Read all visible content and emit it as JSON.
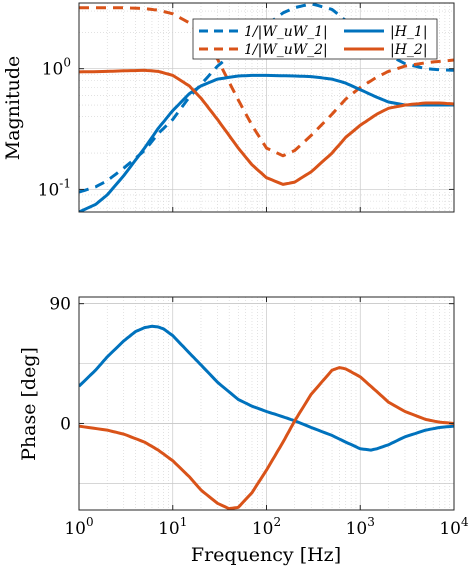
{
  "chart_data": [
    {
      "type": "line",
      "xlabel": "",
      "ylabel": "Magnitude",
      "xscale": "log",
      "yscale": "log",
      "xlim": [
        1,
        10000
      ],
      "ylim": [
        0.065,
        3.5
      ],
      "grid": true,
      "legend": "top-right",
      "x_ticks": [
        1,
        10,
        100,
        1000,
        10000
      ],
      "y_ticks": [
        {
          "value": 0.1,
          "label": "10^{-1}"
        },
        {
          "value": 1,
          "label": "10^{0}"
        }
      ],
      "series": [
        {
          "name": "1/|W_uW_1|",
          "color": "#0072BD",
          "dash": "dashed",
          "x": [
            1,
            1.5,
            2,
            3,
            5,
            7,
            10,
            15,
            20,
            30,
            50,
            70,
            100,
            150,
            200,
            300,
            500,
            700,
            1000,
            1500,
            2000,
            3000,
            5000,
            7000,
            10000
          ],
          "y": [
            0.095,
            0.105,
            0.118,
            0.15,
            0.21,
            0.29,
            0.38,
            0.58,
            0.74,
            1.05,
            1.45,
            1.85,
            2.3,
            2.9,
            3.2,
            3.45,
            3.1,
            2.5,
            2.0,
            1.55,
            1.3,
            1.1,
            1.0,
            0.98,
            0.97
          ]
        },
        {
          "name": "1/|W_uW_2|",
          "color": "#D95319",
          "dash": "dashed",
          "x": [
            1,
            2,
            3,
            5,
            7,
            10,
            15,
            20,
            30,
            50,
            70,
            100,
            150,
            200,
            300,
            500,
            700,
            1000,
            1500,
            2000,
            3000,
            5000,
            7000,
            10000
          ],
          "y": [
            3.2,
            3.2,
            3.2,
            3.15,
            3.05,
            2.85,
            2.4,
            1.9,
            1.2,
            0.55,
            0.34,
            0.22,
            0.19,
            0.21,
            0.28,
            0.42,
            0.56,
            0.7,
            0.85,
            0.95,
            1.05,
            1.12,
            1.15,
            1.18
          ]
        },
        {
          "name": "|H_1|",
          "color": "#0072BD",
          "dash": "solid",
          "x": [
            1,
            1.5,
            2,
            3,
            5,
            7,
            10,
            15,
            20,
            30,
            50,
            70,
            100,
            200,
            300,
            500,
            700,
            1000,
            1500,
            2000,
            3000,
            5000,
            7000,
            10000
          ],
          "y": [
            0.065,
            0.075,
            0.09,
            0.13,
            0.22,
            0.32,
            0.45,
            0.62,
            0.72,
            0.82,
            0.87,
            0.88,
            0.88,
            0.87,
            0.86,
            0.82,
            0.76,
            0.67,
            0.58,
            0.53,
            0.5,
            0.5,
            0.5,
            0.5
          ]
        },
        {
          "name": "|H_2|",
          "color": "#D95319",
          "dash": "solid",
          "x": [
            1,
            2,
            3,
            5,
            7,
            10,
            15,
            20,
            30,
            50,
            70,
            100,
            150,
            200,
            300,
            500,
            700,
            1000,
            1500,
            2000,
            3000,
            5000,
            7000,
            10000
          ],
          "y": [
            0.94,
            0.95,
            0.96,
            0.97,
            0.95,
            0.88,
            0.72,
            0.57,
            0.38,
            0.22,
            0.16,
            0.125,
            0.11,
            0.115,
            0.14,
            0.2,
            0.27,
            0.34,
            0.42,
            0.47,
            0.5,
            0.52,
            0.52,
            0.51
          ]
        }
      ]
    },
    {
      "type": "line",
      "xlabel": "Frequency [Hz]",
      "ylabel": "Phase [deg]",
      "xscale": "log",
      "yscale": "linear",
      "xlim": [
        1,
        10000
      ],
      "ylim": [
        -65,
        95
      ],
      "grid": true,
      "x_ticks": [
        {
          "value": 1,
          "label": "10^{0}"
        },
        {
          "value": 10,
          "label": "10^{1}"
        },
        {
          "value": 100,
          "label": "10^{2}"
        },
        {
          "value": 1000,
          "label": "10^{3}"
        },
        {
          "value": 10000,
          "label": "10^{4}"
        }
      ],
      "y_ticks": [
        0,
        90
      ],
      "series": [
        {
          "color": "#0072BD",
          "x": [
            1,
            1.5,
            2,
            3,
            4,
            5,
            6,
            7,
            8,
            10,
            15,
            20,
            30,
            50,
            70,
            100,
            150,
            200,
            300,
            500,
            700,
            1000,
            1300,
            1500,
            2000,
            3000,
            5000,
            7000,
            10000
          ],
          "y": [
            28,
            40,
            50,
            62,
            69,
            72,
            73,
            72.5,
            71,
            66,
            53,
            44,
            31,
            18,
            13,
            9,
            5,
            2,
            -3,
            -9,
            -14,
            -19,
            -20,
            -19,
            -16,
            -10,
            -5,
            -3,
            -2
          ]
        },
        {
          "color": "#D95319",
          "x": [
            1,
            2,
            3,
            5,
            7,
            10,
            15,
            20,
            30,
            40,
            50,
            70,
            100,
            150,
            200,
            300,
            500,
            600,
            700,
            1000,
            1500,
            2000,
            3000,
            5000,
            7000,
            10000
          ],
          "y": [
            -2,
            -5,
            -8,
            -14,
            -20,
            -28,
            -40,
            -50,
            -60,
            -64,
            -63,
            -52,
            -35,
            -14,
            2,
            22,
            40,
            42,
            41,
            35,
            24,
            16,
            9,
            3,
            1,
            0
          ]
        }
      ]
    }
  ]
}
